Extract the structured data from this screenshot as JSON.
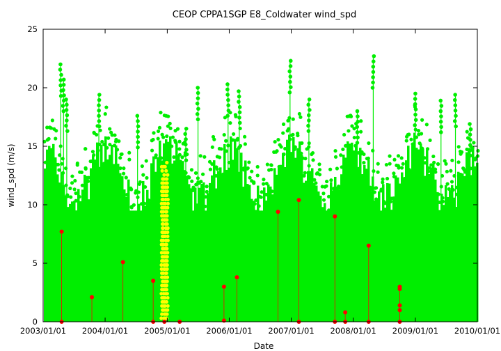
{
  "chart_data": {
    "type": "scatter",
    "title": "CEOP CPPA1SGP E8_Coldwater wind_spd",
    "xlabel": "Date",
    "ylabel": "wind_spd (m/s)",
    "xlim": [
      "2003/01/01",
      "2010/01/01"
    ],
    "ylim": [
      0,
      25
    ],
    "x_ticks": [
      "2003/01/01",
      "2004/01/01",
      "2005/01/01",
      "2006/01/01",
      "2007/01/01",
      "2008/01/01",
      "2009/01/01",
      "2010/01/01"
    ],
    "y_ticks": [
      0,
      5,
      10,
      15,
      20,
      25
    ],
    "grid": false,
    "legend": "none",
    "series": [
      {
        "color": "#00ee00",
        "description": "dense time series of wind speed observations with drop lines",
        "peaks": [
          {
            "x": "2003/04/15",
            "y": 22.0
          },
          {
            "x": "2003/05/01",
            "y": 20.7
          },
          {
            "x": "2003/05/20",
            "y": 19.0
          },
          {
            "x": "2003/11/25",
            "y": 19.4
          },
          {
            "x": "2004/07/10",
            "y": 17.6
          },
          {
            "x": "2005/04/20",
            "y": 16.5
          },
          {
            "x": "2005/07/01",
            "y": 20.0
          },
          {
            "x": "2005/12/25",
            "y": 20.3
          },
          {
            "x": "2006/03/01",
            "y": 19.7
          },
          {
            "x": "2006/12/25",
            "y": 22.3
          },
          {
            "x": "2007/04/15",
            "y": 19.0
          },
          {
            "x": "2008/01/25",
            "y": 18.0
          },
          {
            "x": "2008/04/28",
            "y": 22.7
          },
          {
            "x": "2009/01/01",
            "y": 19.5
          },
          {
            "x": "2009/06/01",
            "y": 18.9
          },
          {
            "x": "2009/08/25",
            "y": 19.4
          },
          {
            "x": "2009/11/20",
            "y": 16.9
          }
        ]
      },
      {
        "color": "#ffff00",
        "description": "highlighted segment of observations",
        "x_range": [
          "2004/12/01",
          "2005/01/10"
        ],
        "y_max": 13.7
      },
      {
        "color": "#ff0000",
        "description": "flagged observations",
        "points": [
          {
            "x": "2003/04/20",
            "y": 7.7
          },
          {
            "x": "2003/04/20",
            "y": 0.0
          },
          {
            "x": "2003/10/15",
            "y": 2.1
          },
          {
            "x": "2004/04/15",
            "y": 5.1
          },
          {
            "x": "2004/10/10",
            "y": 3.5
          },
          {
            "x": "2004/10/10",
            "y": 0.0
          },
          {
            "x": "2004/12/15",
            "y": 0.0
          },
          {
            "x": "2005/03/15",
            "y": 0.0
          },
          {
            "x": "2005/12/01",
            "y": 3.0
          },
          {
            "x": "2005/12/01",
            "y": 0.1
          },
          {
            "x": "2006/02/15",
            "y": 3.8
          },
          {
            "x": "2006/10/15",
            "y": 9.4
          },
          {
            "x": "2007/02/15",
            "y": 10.4
          },
          {
            "x": "2007/02/15",
            "y": 0.0
          },
          {
            "x": "2007/09/15",
            "y": 9.0
          },
          {
            "x": "2007/09/15",
            "y": 0.0
          },
          {
            "x": "2007/11/15",
            "y": 0.8
          },
          {
            "x": "2007/11/15",
            "y": 0.0
          },
          {
            "x": "2008/04/01",
            "y": 6.5
          },
          {
            "x": "2008/04/01",
            "y": 0.0
          },
          {
            "x": "2008/10/01",
            "y": 3.0
          },
          {
            "x": "2008/10/01",
            "y": 2.8
          },
          {
            "x": "2008/10/01",
            "y": 1.4
          },
          {
            "x": "2008/10/01",
            "y": 1.0
          },
          {
            "x": "2008/10/01",
            "y": 0.0
          }
        ]
      }
    ]
  }
}
